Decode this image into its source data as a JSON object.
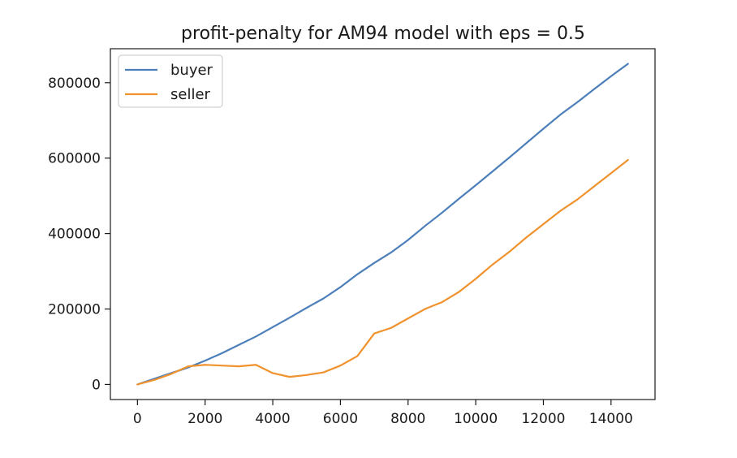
{
  "chart_data": {
    "type": "line",
    "title": "profit-penalty for AM94 model with eps = 0.5",
    "xlabel": "",
    "ylabel": "",
    "xlim": [
      -800,
      15300
    ],
    "ylim": [
      -40000,
      890000
    ],
    "xticks": [
      0,
      2000,
      4000,
      6000,
      8000,
      10000,
      12000,
      14000
    ],
    "xtick_labels": [
      "0",
      "2000",
      "4000",
      "6000",
      "8000",
      "10000",
      "12000",
      "14000"
    ],
    "yticks": [
      0,
      200000,
      400000,
      600000,
      800000
    ],
    "ytick_labels": [
      "0",
      "200000",
      "400000",
      "600000",
      "800000"
    ],
    "grid": false,
    "legend_position": "top-left",
    "x": [
      0,
      500,
      1000,
      1500,
      2000,
      2500,
      3000,
      3500,
      4000,
      4500,
      5000,
      5500,
      6000,
      6500,
      7000,
      7500,
      8000,
      8500,
      9000,
      9500,
      10000,
      10500,
      11000,
      11500,
      12000,
      12500,
      13000,
      13500,
      14000,
      14500
    ],
    "series": [
      {
        "name": "buyer",
        "color": "#4c7fba",
        "values": [
          0,
          15000,
          30000,
          45000,
          63000,
          83000,
          105000,
          127000,
          152000,
          177000,
          203000,
          228000,
          258000,
          292000,
          322000,
          350000,
          383000,
          420000,
          455000,
          492000,
          528000,
          565000,
          602000,
          640000,
          678000,
          715000,
          748000,
          783000,
          817000,
          850000
        ]
      },
      {
        "name": "seller",
        "color": "#f0922e",
        "values": [
          0,
          12000,
          28000,
          48000,
          52000,
          50000,
          48000,
          52000,
          30000,
          20000,
          25000,
          32000,
          50000,
          75000,
          135000,
          150000,
          175000,
          200000,
          218000,
          245000,
          280000,
          318000,
          352000,
          390000,
          425000,
          460000,
          490000,
          525000,
          560000,
          595000
        ]
      }
    ]
  }
}
